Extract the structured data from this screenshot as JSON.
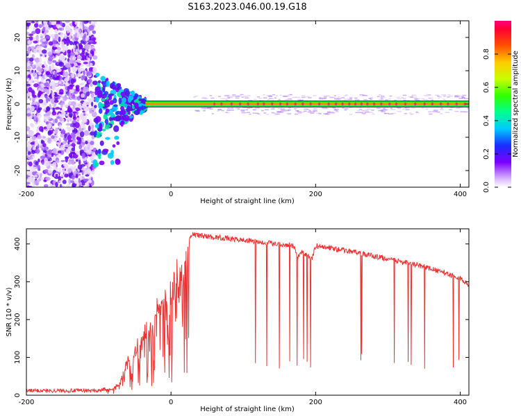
{
  "title": "S163.2023.046.00.19.G18",
  "chart_data": [
    {
      "type": "heatmap",
      "xlabel": "Height of straight line (km)",
      "ylabel": "Frequency (Hz)",
      "xlim": [
        -200,
        412
      ],
      "ylim": [
        -25,
        25
      ],
      "xticks": [
        -200,
        0,
        200,
        400
      ],
      "yticks": [
        20,
        10,
        0,
        -10,
        -20
      ],
      "colorbar": {
        "label": "Normalized spectral amplitude",
        "range": [
          0,
          1
        ],
        "ticks": [
          "0.0",
          "0.2",
          "0.4",
          "0.6",
          "0.8"
        ]
      },
      "regions": [
        {
          "x": [
            -200,
            -105
          ],
          "freq": [
            -25,
            25
          ],
          "amplitude": 0.08,
          "pattern": "scattered noise"
        },
        {
          "x": [
            -105,
            -35
          ],
          "freq": [
            -19,
            8
          ],
          "amplitude": 0.35,
          "pattern": "converging blobs"
        },
        {
          "x": [
            -35,
            412
          ],
          "freq": [
            0,
            0
          ],
          "amplitude": 0.95,
          "pattern": "narrow carrier line"
        }
      ]
    },
    {
      "type": "line",
      "xlabel": "Height of straight line (km)",
      "ylabel": "SNR (10 * v/v)",
      "xlim": [
        -200,
        412
      ],
      "ylim": [
        0,
        440
      ],
      "xticks": [
        -200,
        0,
        200,
        400
      ],
      "yticks": [
        0,
        100,
        200,
        300,
        400
      ],
      "color": "#ee3030",
      "envelope": [
        {
          "x": -200,
          "y": 12
        },
        {
          "x": -100,
          "y": 12
        },
        {
          "x": -80,
          "y": 20
        },
        {
          "x": -70,
          "y": 40
        },
        {
          "x": -60,
          "y": 110
        },
        {
          "x": -40,
          "y": 170
        },
        {
          "x": -20,
          "y": 260
        },
        {
          "x": 0,
          "y": 330
        },
        {
          "x": 15,
          "y": 390
        },
        {
          "x": 30,
          "y": 425
        },
        {
          "x": 50,
          "y": 420
        },
        {
          "x": 100,
          "y": 410
        },
        {
          "x": 150,
          "y": 400
        },
        {
          "x": 170,
          "y": 395
        },
        {
          "x": 175,
          "y": 365
        },
        {
          "x": 180,
          "y": 380
        },
        {
          "x": 195,
          "y": 360
        },
        {
          "x": 200,
          "y": 395
        },
        {
          "x": 250,
          "y": 380
        },
        {
          "x": 300,
          "y": 360
        },
        {
          "x": 350,
          "y": 340
        },
        {
          "x": 400,
          "y": 310
        },
        {
          "x": 412,
          "y": 290
        }
      ],
      "dropouts": {
        "from": 110,
        "to": 400,
        "min_y": 70
      }
    }
  ]
}
